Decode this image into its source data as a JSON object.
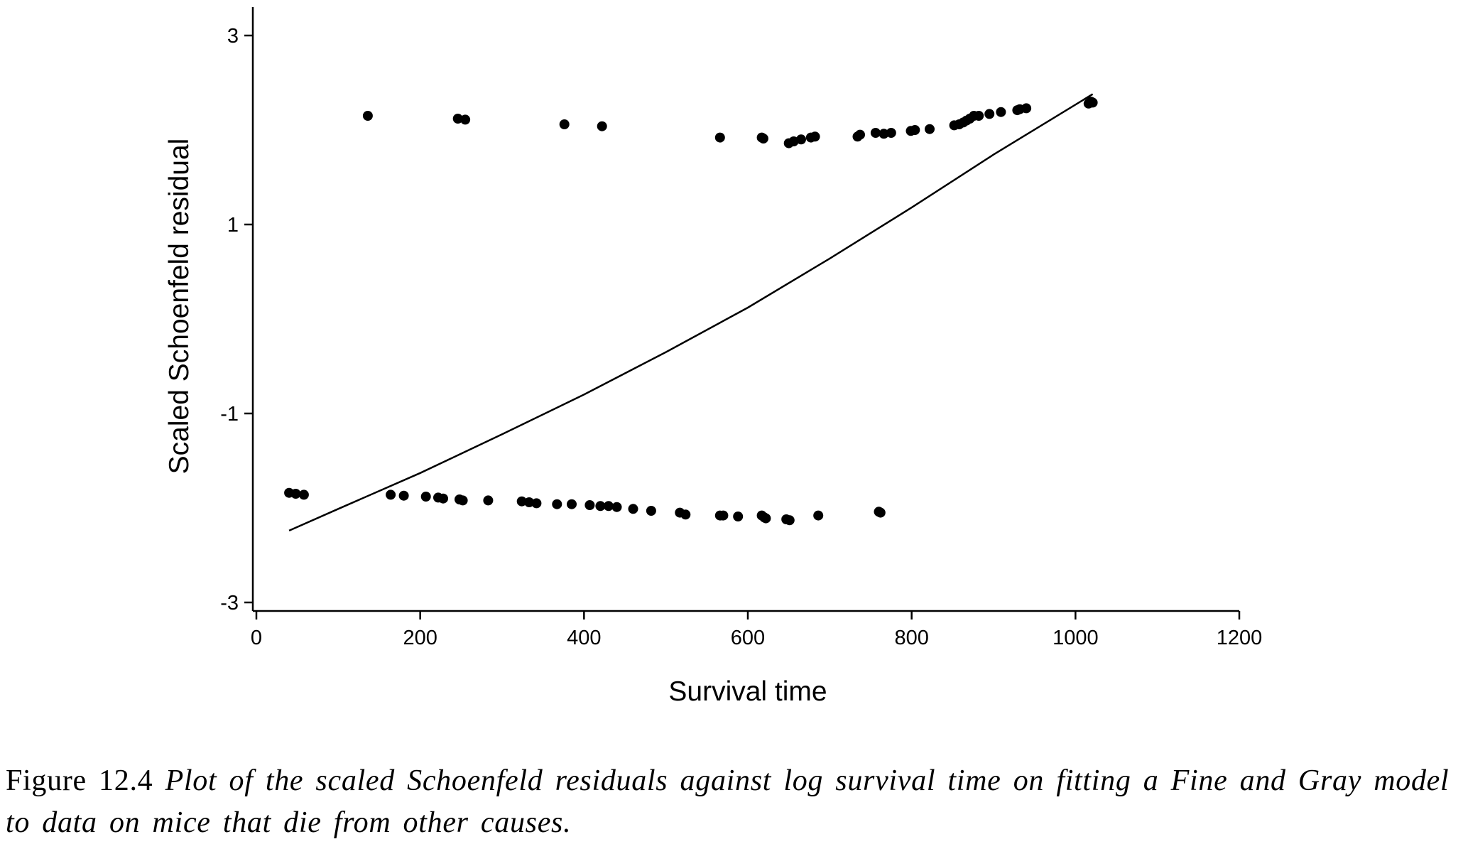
{
  "chart_data": {
    "type": "scatter",
    "xlabel": "Survival time",
    "ylabel": "Scaled Schoenfeld residual",
    "xlim": [
      0,
      1200
    ],
    "ylim": [
      -3,
      3
    ],
    "xticks": [
      0,
      200,
      400,
      600,
      800,
      1000,
      1200
    ],
    "yticks": [
      -3,
      -1,
      1,
      3
    ],
    "grid": false,
    "legend": "none",
    "points": [
      [
        40,
        -1.84
      ],
      [
        48,
        -1.85
      ],
      [
        58,
        -1.86
      ],
      [
        136,
        2.15
      ],
      [
        164,
        -1.86
      ],
      [
        180,
        -1.87
      ],
      [
        207,
        -1.88
      ],
      [
        222,
        -1.89
      ],
      [
        228,
        -1.9
      ],
      [
        248,
        -1.91
      ],
      [
        252,
        -1.92
      ],
      [
        283,
        -1.92
      ],
      [
        246,
        2.12
      ],
      [
        255,
        2.11
      ],
      [
        324,
        -1.93
      ],
      [
        333,
        -1.94
      ],
      [
        342,
        -1.95
      ],
      [
        367,
        -1.96
      ],
      [
        385,
        -1.96
      ],
      [
        376,
        2.06
      ],
      [
        422,
        2.04
      ],
      [
        407,
        -1.97
      ],
      [
        420,
        -1.98
      ],
      [
        430,
        -1.98
      ],
      [
        440,
        -1.99
      ],
      [
        460,
        -2.01
      ],
      [
        482,
        -2.03
      ],
      [
        517,
        -2.05
      ],
      [
        524,
        -2.07
      ],
      [
        566,
        -2.08
      ],
      [
        570,
        -2.08
      ],
      [
        588,
        -2.09
      ],
      [
        617,
        -2.08
      ],
      [
        620,
        -2.1
      ],
      [
        622,
        -2.11
      ],
      [
        647,
        -2.12
      ],
      [
        651,
        -2.13
      ],
      [
        686,
        -2.08
      ],
      [
        760,
        -2.04
      ],
      [
        762,
        -2.05
      ],
      [
        566,
        1.92
      ],
      [
        617,
        1.92
      ],
      [
        619,
        1.91
      ],
      [
        650,
        1.86
      ],
      [
        656,
        1.88
      ],
      [
        665,
        1.9
      ],
      [
        677,
        1.92
      ],
      [
        682,
        1.93
      ],
      [
        734,
        1.93
      ],
      [
        737,
        1.95
      ],
      [
        756,
        1.97
      ],
      [
        766,
        1.96
      ],
      [
        775,
        1.97
      ],
      [
        799,
        1.99
      ],
      [
        804,
        2.0
      ],
      [
        822,
        2.01
      ],
      [
        852,
        2.05
      ],
      [
        858,
        2.06
      ],
      [
        863,
        2.08
      ],
      [
        867,
        2.1
      ],
      [
        871,
        2.12
      ],
      [
        876,
        2.15
      ],
      [
        882,
        2.15
      ],
      [
        895,
        2.17
      ],
      [
        909,
        2.19
      ],
      [
        929,
        2.21
      ],
      [
        932,
        2.22
      ],
      [
        940,
        2.23
      ],
      [
        1016,
        2.28
      ],
      [
        1019,
        2.3
      ],
      [
        1021,
        2.29
      ]
    ],
    "fit_line": [
      [
        40,
        -2.24
      ],
      [
        100,
        -2.01
      ],
      [
        200,
        -1.63
      ],
      [
        300,
        -1.22
      ],
      [
        400,
        -0.8
      ],
      [
        500,
        -0.35
      ],
      [
        600,
        0.12
      ],
      [
        700,
        0.64
      ],
      [
        800,
        1.18
      ],
      [
        900,
        1.74
      ],
      [
        1021,
        2.38
      ]
    ]
  },
  "caption": {
    "label": "Figure 12.4",
    "text": "Plot of the scaled Schoenfeld residuals against log survival time on fitting a Fine and Gray model to data on mice that die from other causes."
  },
  "colors": {
    "ink": "#000000",
    "background": "#ffffff"
  }
}
